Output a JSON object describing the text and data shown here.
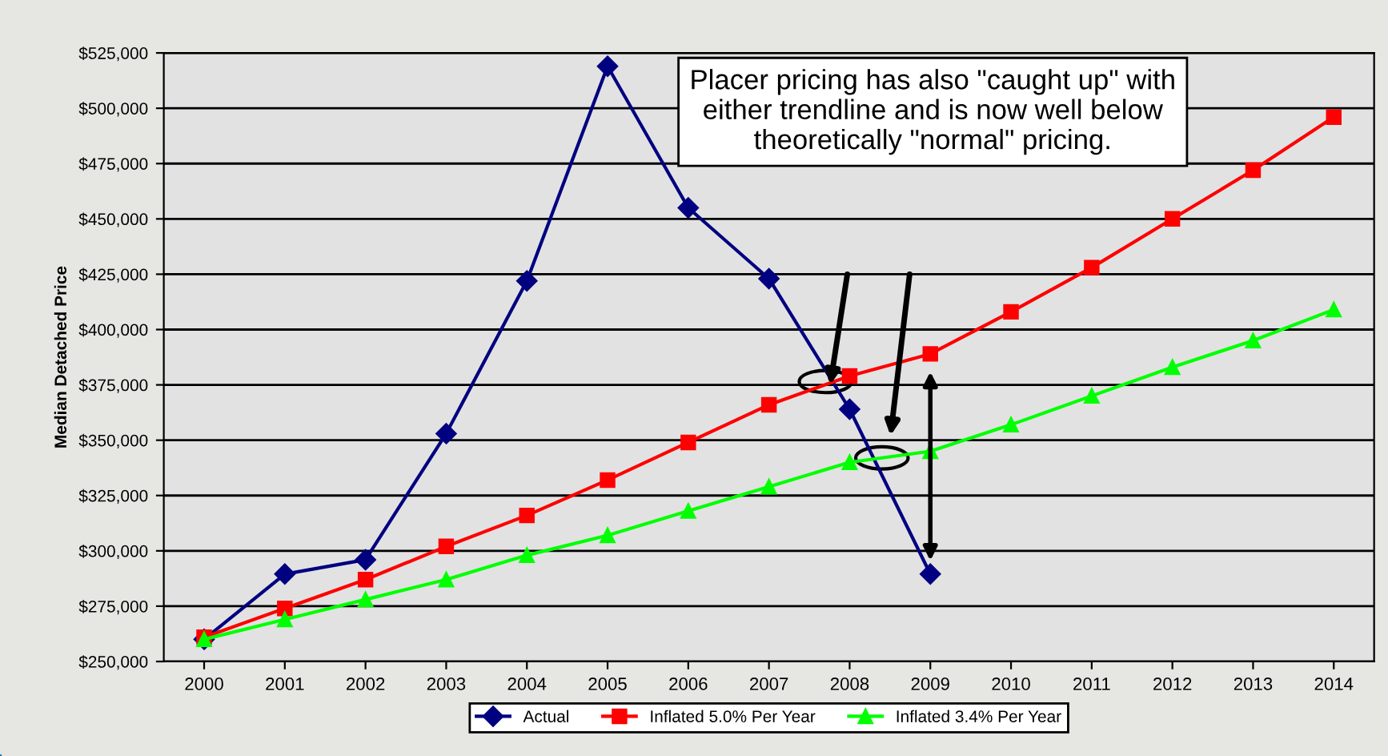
{
  "chart_data": {
    "type": "line",
    "ylabel": "Median Detached Price",
    "categories": [
      "2000",
      "2001",
      "2002",
      "2003",
      "2004",
      "2005",
      "2006",
      "2007",
      "2008",
      "2009",
      "2010",
      "2011",
      "2012",
      "2013",
      "2014"
    ],
    "series": [
      {
        "name": "Actual",
        "color": "#000080",
        "marker": "diamond",
        "values": [
          260000,
          289500,
          296000,
          353000,
          422000,
          519000,
          455000,
          423000,
          364000,
          289500,
          null,
          null,
          null,
          null,
          null
        ]
      },
      {
        "name": "Inflated 5.0% Per Year",
        "color": "#ff0000",
        "marker": "square",
        "values": [
          261000,
          274000,
          287000,
          302000,
          316000,
          332000,
          349000,
          366000,
          379000,
          389000,
          408000,
          428000,
          450000,
          472000,
          496000
        ]
      },
      {
        "name": "Inflated 3.4% Per Year",
        "color": "#00ff00",
        "marker": "triangle",
        "values": [
          260000,
          269000,
          278000,
          287000,
          298000,
          307000,
          318000,
          329000,
          340000,
          345000,
          357000,
          370000,
          383000,
          395000,
          409000
        ]
      }
    ],
    "ylim": [
      250000,
      525000
    ],
    "yticks": [
      {
        "value": 250000,
        "label": "$250,000"
      },
      {
        "value": 275000,
        "label": "$275,000"
      },
      {
        "value": 300000,
        "label": "$300,000"
      },
      {
        "value": 325000,
        "label": "$325,000"
      },
      {
        "value": 350000,
        "label": "$350,000"
      },
      {
        "value": 375000,
        "label": "$375,000"
      },
      {
        "value": 400000,
        "label": "$400,000"
      },
      {
        "value": 425000,
        "label": "$425,000"
      },
      {
        "value": 450000,
        "label": "$450,000"
      },
      {
        "value": 475000,
        "label": "$475,000"
      },
      {
        "value": 500000,
        "label": "$500,000"
      },
      {
        "value": 525000,
        "label": "$525,000"
      }
    ],
    "grid": "y",
    "legend": "bottom",
    "line_style": "solid",
    "annotations": [
      "Placer pricing has also \"caught up\" with either trendline and is now well below theoretically \"normal\" pricing."
    ]
  }
}
